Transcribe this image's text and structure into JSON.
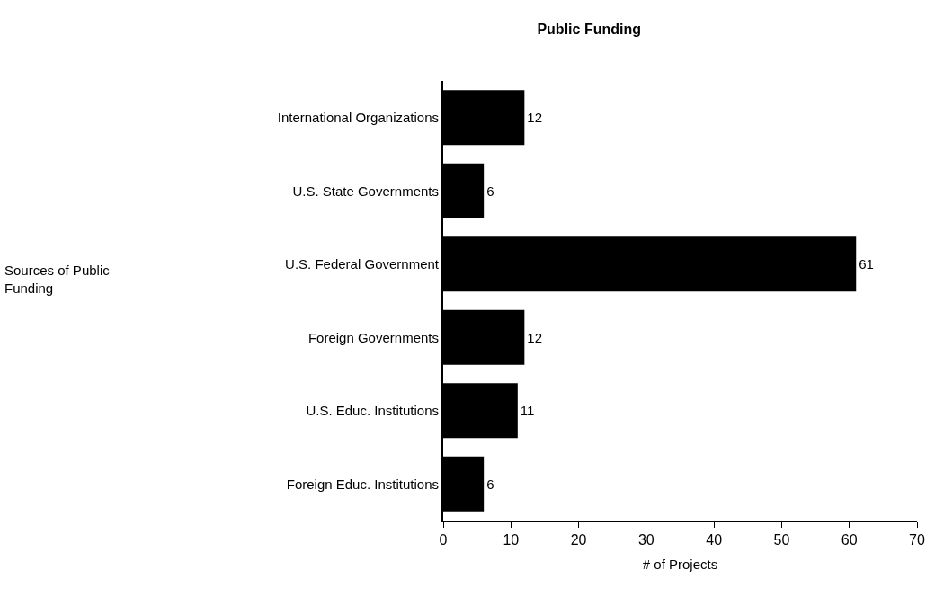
{
  "chart_data": {
    "type": "bar",
    "orientation": "horizontal",
    "title": "Public Funding",
    "xlabel": "# of Projects",
    "annotations": [
      "Sources of Public Funding"
    ],
    "categories": [
      "International Organizations",
      "U.S. State Governments",
      "U.S. Federal Government",
      "Foreign Governments",
      "U.S. Educ. Institutions",
      "Foreign Educ. Institutions"
    ],
    "values": [
      12,
      6,
      61,
      12,
      11,
      6
    ],
    "color": "#000000",
    "data_labels": true,
    "xlim": [
      0,
      70
    ],
    "xticks": [
      0,
      10,
      20,
      30,
      40,
      50,
      60,
      70
    ],
    "grid": false
  }
}
